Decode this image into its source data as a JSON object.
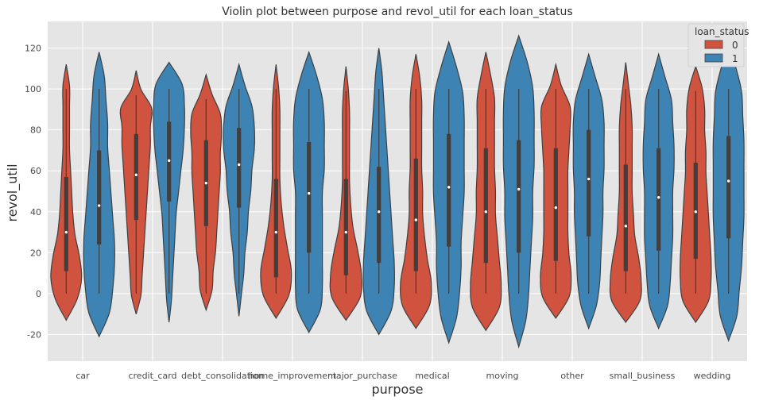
{
  "chart_data": {
    "type": "violin",
    "title": "Violin plot between purpose and revol_util for each loan_status",
    "xlabel": "purpose",
    "ylabel": "revol_util",
    "ylim": [
      -33,
      133
    ],
    "yticks": [
      -20,
      0,
      20,
      40,
      60,
      80,
      100,
      120
    ],
    "grid": true,
    "legend": {
      "title": "loan_status",
      "placement": "top-right"
    },
    "categories": [
      "car",
      "credit_card",
      "debt_consolidation",
      "home_improvement",
      "major_purchase",
      "medical",
      "moving",
      "other",
      "small_business",
      "wedding"
    ],
    "series": [
      {
        "name": "0",
        "color": "#d0533f",
        "stats": [
          {
            "min": -13,
            "max": 112,
            "q1": 11,
            "median": 30,
            "q3": 57,
            "dense": [
              -10,
              5,
              10,
              14,
              12,
              8,
              6,
              5,
              4,
              3,
              3,
              3,
              3,
              0
            ]
          },
          {
            "min": -10,
            "max": 109,
            "q1": 36,
            "median": 58,
            "q3": 78,
            "dense": [
              -8,
              3,
              4,
              5,
              6,
              7,
              8,
              9,
              10,
              11,
              12,
              12,
              13,
              4,
              0
            ]
          },
          {
            "min": -8,
            "max": 107,
            "q1": 33,
            "median": 54,
            "q3": 75,
            "dense": [
              -6,
              3,
              5,
              6,
              8,
              9,
              10,
              11,
              12,
              12,
              13,
              12,
              5,
              0
            ]
          },
          {
            "min": -12,
            "max": 112,
            "q1": 8,
            "median": 30,
            "q3": 56,
            "dense": [
              -10,
              6,
              10,
              12,
              9,
              6,
              4,
              3,
              3,
              3,
              3,
              2,
              0
            ]
          },
          {
            "min": -13,
            "max": 111,
            "q1": 9,
            "median": 30,
            "q3": 56,
            "dense": [
              -10,
              6,
              12,
              13,
              10,
              6,
              4,
              3,
              3,
              3,
              3,
              2,
              0
            ]
          },
          {
            "min": -17,
            "max": 117,
            "q1": 11,
            "median": 36,
            "q3": 66,
            "dense": [
              -15,
              4,
              14,
              16,
              12,
              9,
              7,
              7,
              6,
              6,
              6,
              6,
              4,
              0
            ]
          },
          {
            "min": -18,
            "max": 118,
            "q1": 15,
            "median": 40,
            "q3": 71,
            "dense": [
              -15,
              5,
              14,
              16,
              14,
              12,
              10,
              10,
              9,
              9,
              9,
              9,
              5,
              0
            ]
          },
          {
            "min": -12,
            "max": 112,
            "q1": 16,
            "median": 42,
            "q3": 71,
            "dense": [
              -10,
              4,
              12,
              14,
              12,
              11,
              11,
              11,
              11,
              12,
              13,
              13,
              5,
              0
            ]
          },
          {
            "min": -14,
            "max": 113,
            "q1": 11,
            "median": 33,
            "q3": 63,
            "dense": [
              -11,
              4,
              11,
              12,
              10,
              7,
              6,
              5,
              5,
              5,
              5,
              4,
              2,
              0
            ]
          },
          {
            "min": -14,
            "max": 111,
            "q1": 17,
            "median": 40,
            "q3": 64,
            "dense": [
              -11,
              4,
              10,
              12,
              12,
              11,
              10,
              9,
              8,
              8,
              7,
              7,
              5,
              0
            ]
          }
        ]
      },
      {
        "name": "1",
        "color": "#3d84b4",
        "stats": [
          {
            "min": -21,
            "max": 118,
            "q1": 24,
            "median": 43,
            "q3": 70,
            "dense": [
              -18,
              2,
              6,
              8,
              9,
              9,
              8,
              7,
              6,
              5,
              5,
              4,
              3,
              0
            ]
          },
          {
            "min": -14,
            "max": 113,
            "q1": 45,
            "median": 65,
            "q3": 84,
            "dense": [
              -10,
              1,
              2,
              3,
              4,
              5,
              6,
              8,
              10,
              12,
              13,
              13,
              11,
              0
            ]
          },
          {
            "min": -11,
            "max": 112,
            "q1": 42,
            "median": 63,
            "q3": 81,
            "dense": [
              -8,
              1,
              2,
              4,
              5,
              7,
              8,
              10,
              11,
              13,
              13,
              11,
              5,
              0
            ]
          },
          {
            "min": -19,
            "max": 118,
            "q1": 20,
            "median": 49,
            "q3": 74,
            "dense": [
              -16,
              3,
              6,
              7,
              7,
              7,
              7,
              7,
              8,
              8,
              8,
              7,
              4,
              0
            ]
          },
          {
            "min": -20,
            "max": 120,
            "q1": 15,
            "median": 40,
            "q3": 62,
            "dense": [
              -16,
              3,
              8,
              10,
              10,
              9,
              8,
              7,
              6,
              5,
              4,
              3,
              2,
              0
            ]
          },
          {
            "min": -24,
            "max": 123,
            "q1": 23,
            "median": 52,
            "q3": 78,
            "dense": [
              -20,
              2,
              5,
              7,
              8,
              8,
              9,
              10,
              10,
              10,
              10,
              9,
              5,
              0
            ]
          },
          {
            "min": -26,
            "max": 126,
            "q1": 20,
            "median": 51,
            "q3": 75,
            "dense": [
              -22,
              2,
              5,
              7,
              8,
              9,
              10,
              10,
              11,
              11,
              11,
              10,
              6,
              0
            ]
          },
          {
            "min": -17,
            "max": 117,
            "q1": 28,
            "median": 56,
            "q3": 80,
            "dense": [
              -14,
              3,
              7,
              10,
              11,
              12,
              13,
              13,
              14,
              14,
              14,
              12,
              6,
              0
            ]
          },
          {
            "min": -17,
            "max": 117,
            "q1": 21,
            "median": 47,
            "q3": 71,
            "dense": [
              -14,
              3,
              7,
              9,
              10,
              11,
              11,
              11,
              12,
              12,
              11,
              10,
              5,
              0
            ]
          },
          {
            "min": -23,
            "max": 123,
            "q1": 27,
            "median": 55,
            "q3": 77,
            "dense": [
              -19,
              3,
              7,
              9,
              11,
              12,
              13,
              13,
              13,
              13,
              12,
              11,
              6,
              0
            ]
          }
        ]
      }
    ]
  }
}
